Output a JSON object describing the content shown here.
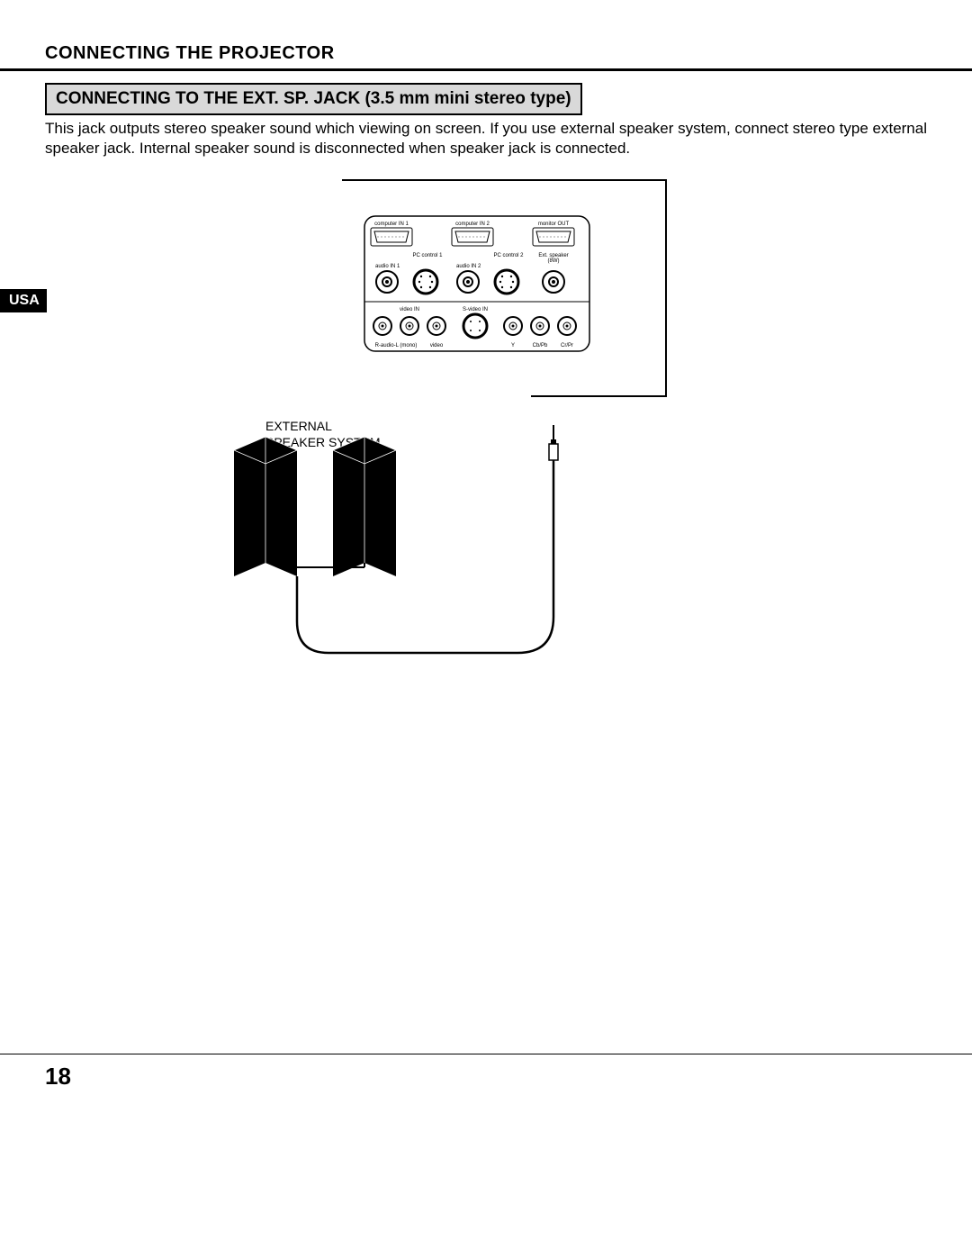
{
  "header": {
    "title": "CONNECTING THE PROJECTOR"
  },
  "section": {
    "title": "CONNECTING TO THE EXT. SP. JACK (3.5 mm mini stereo type)",
    "body": "This jack outputs stereo speaker sound which viewing on screen. If you use external speaker system, connect stereo type external speaker jack. Internal speaker sound is disconnected when speaker jack is connected."
  },
  "side_tab": "USA",
  "labels": {
    "external_speaker": "EXTERNAL\nSPEAKER SYSTEM"
  },
  "page_number": "18",
  "panel": {
    "top_ports": [
      "computer IN 1",
      "computer IN 2",
      "monitor OUT"
    ],
    "mid_ports_left": "PC control 1",
    "mid_ports_right": "PC control 2",
    "ext_speaker": "Ext. speaker",
    "ext_speaker_sub": "(8W)",
    "audio_in1": "audio IN 1",
    "audio_in2": "audio IN 2",
    "video_in": "video IN",
    "svideo_in": "S-video IN",
    "bottom_labels": [
      "R-audio-L (mono)",
      "video",
      "Y",
      "Cb/Pb",
      "Cr/Pr"
    ]
  },
  "colors": {
    "black": "#000000",
    "white": "#ffffff",
    "gray_box": "#d9d9d9"
  }
}
